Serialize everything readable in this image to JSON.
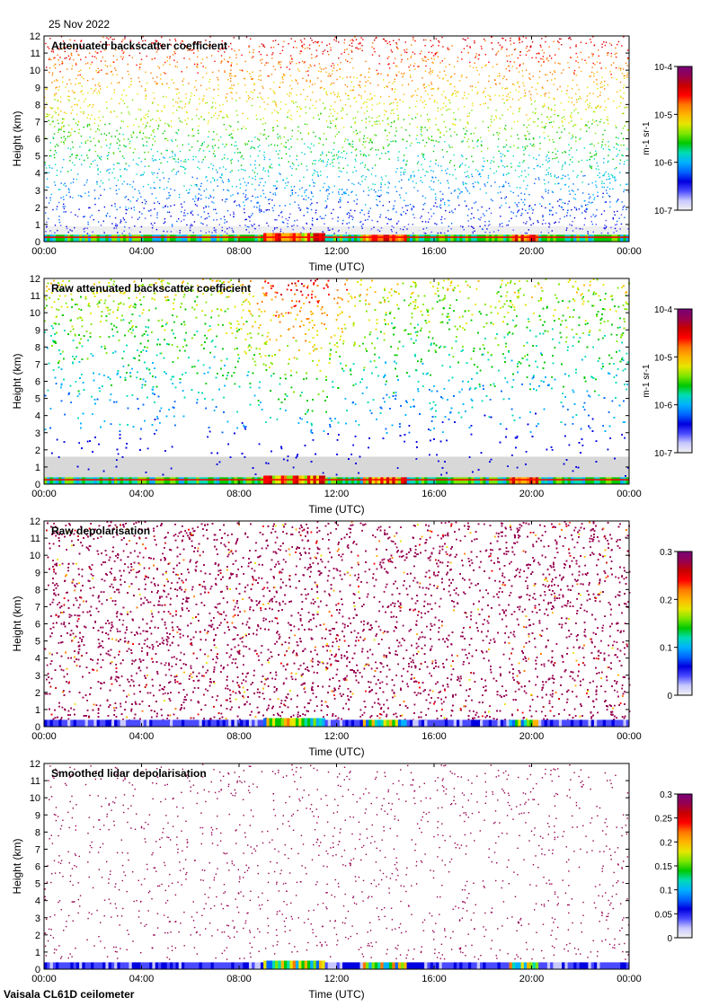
{
  "date": "25 Nov 2022",
  "instrument": "Vaisala CL61D ceilometer",
  "colors": {
    "empty": "#ffffff",
    "noise_floor": "#d8d8d8",
    "colormap": [
      "#f2f2f2",
      "#c8c8ff",
      "#4a4aff",
      "#0000e0",
      "#0066ff",
      "#00b2ff",
      "#00dcb4",
      "#00c800",
      "#7ee600",
      "#e6e600",
      "#ffb400",
      "#ff7800",
      "#ff0000",
      "#c80000",
      "#960050",
      "#780078"
    ]
  },
  "chart_data": [
    {
      "type": "heatmap",
      "title": "Attenuated backscatter coefficient",
      "xlabel": "Time (UTC)",
      "ylabel": "Height (km)",
      "x_ticks": [
        "00:00",
        "04:00",
        "08:00",
        "12:00",
        "16:00",
        "20:00",
        "00:00"
      ],
      "y_ticks": [
        "0",
        "1",
        "2",
        "3",
        "4",
        "5",
        "6",
        "7",
        "8",
        "9",
        "10",
        "11",
        "12"
      ],
      "xlim": [
        0,
        24
      ],
      "ylim": [
        0,
        12
      ],
      "colorbar": {
        "scale": "log",
        "range": [
          1e-07,
          0.0001
        ],
        "labels": [
          "10-7",
          "10-6",
          "10-5",
          "10-4"
        ],
        "unit": "m-1 sr-1"
      },
      "pattern": "sparse-high",
      "boundary_layer_top_km": 0.4,
      "cloud_base_segments": [
        [
          9.0,
          11.5,
          0.5
        ],
        [
          13.0,
          14.8,
          0.4
        ],
        [
          19.0,
          20.2,
          0.3
        ]
      ]
    },
    {
      "type": "heatmap",
      "title": "Raw attenuated backscatter coefficient",
      "xlabel": "Time (UTC)",
      "ylabel": "Height (km)",
      "x_ticks": [
        "00:00",
        "04:00",
        "08:00",
        "12:00",
        "16:00",
        "20:00",
        "00:00"
      ],
      "y_ticks": [
        "0",
        "1",
        "2",
        "3",
        "4",
        "5",
        "6",
        "7",
        "8",
        "9",
        "10",
        "11",
        "12"
      ],
      "xlim": [
        0,
        24
      ],
      "ylim": [
        0,
        12
      ],
      "colorbar": {
        "scale": "log",
        "range": [
          1e-07,
          0.0001
        ],
        "labels": [
          "10-7",
          "10-6",
          "10-5",
          "10-4"
        ],
        "unit": "m-1 sr-1"
      },
      "pattern": "dense-noise",
      "boundary_layer_top_km": 0.4,
      "cloud_base_segments": [
        [
          9.0,
          11.5,
          0.5
        ],
        [
          13.0,
          14.8,
          0.4
        ],
        [
          19.0,
          20.2,
          0.3
        ]
      ]
    },
    {
      "type": "heatmap",
      "title": "Raw depolarisation",
      "xlabel": "Time (UTC)",
      "ylabel": "Height (km)",
      "x_ticks": [
        "00:00",
        "04:00",
        "08:00",
        "12:00",
        "16:00",
        "20:00",
        "00:00"
      ],
      "y_ticks": [
        "0",
        "1",
        "2",
        "3",
        "4",
        "5",
        "6",
        "7",
        "8",
        "9",
        "10",
        "11",
        "12"
      ],
      "xlim": [
        0,
        24
      ],
      "ylim": [
        0,
        12
      ],
      "colorbar": {
        "scale": "linear",
        "range": [
          0,
          0.3
        ],
        "labels": [
          "0",
          "0.1",
          "0.2",
          "0.3"
        ],
        "unit": ""
      },
      "pattern": "depol-dense",
      "boundary_layer_top_km": 0.4,
      "cloud_base_segments": [
        [
          9.0,
          11.5,
          0.5
        ],
        [
          13.0,
          14.8,
          0.4
        ],
        [
          19.0,
          20.2,
          0.3
        ]
      ]
    },
    {
      "type": "heatmap",
      "title": "Smoothed lidar depolarisation",
      "xlabel": "Time (UTC)",
      "ylabel": "Height (km)",
      "x_ticks": [
        "00:00",
        "04:00",
        "08:00",
        "12:00",
        "16:00",
        "20:00",
        "00:00"
      ],
      "y_ticks": [
        "0",
        "1",
        "2",
        "3",
        "4",
        "5",
        "6",
        "7",
        "8",
        "9",
        "10",
        "11",
        "12"
      ],
      "xlim": [
        0,
        24
      ],
      "ylim": [
        0,
        12
      ],
      "colorbar": {
        "scale": "linear",
        "range": [
          0,
          0.3
        ],
        "labels": [
          "0",
          "0.05",
          "0.1",
          "0.15",
          "0.2",
          "0.25",
          "0.3"
        ],
        "unit": ""
      },
      "pattern": "depol-sparse",
      "boundary_layer_top_km": 0.4,
      "cloud_base_segments": [
        [
          9.0,
          11.5,
          0.5
        ],
        [
          13.0,
          14.8,
          0.4
        ],
        [
          19.0,
          20.2,
          0.3
        ]
      ]
    }
  ]
}
